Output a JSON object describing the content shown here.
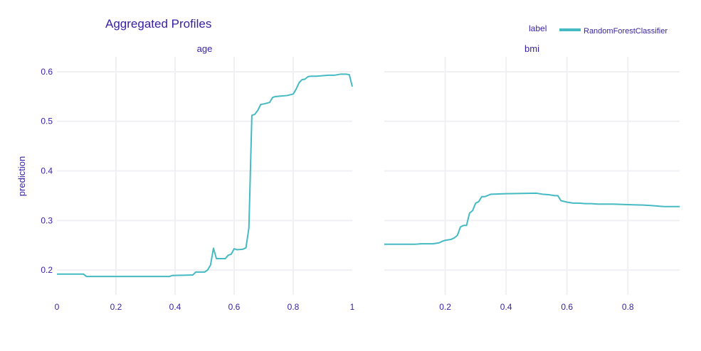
{
  "colors": {
    "text": "#371ea3",
    "line": "#46bac2",
    "grid": "#f0f0f4"
  },
  "title": "Aggregated Profiles",
  "legend": {
    "title": "label",
    "items": [
      "RandomForestClassifier"
    ]
  },
  "y_axis_label": "prediction",
  "chart_data": [
    {
      "type": "line",
      "title": "age",
      "xlabel": "",
      "ylabel": "prediction",
      "xlim": [
        0,
        1
      ],
      "ylim": [
        0.15,
        0.63
      ],
      "xticks": [
        0,
        0.2,
        0.4,
        0.6,
        0.8,
        1
      ],
      "xtick_labels": [
        "0",
        "0.2",
        "0.4",
        "0.6",
        "0.8",
        "1"
      ],
      "yticks": [
        0.2,
        0.3,
        0.4,
        0.5,
        0.6
      ],
      "ytick_labels": [
        "0.2",
        "0.3",
        "0.4",
        "0.5",
        "0.6"
      ],
      "grid": true,
      "series": [
        {
          "name": "RandomForestClassifier",
          "x": [
            0,
            0.09,
            0.1,
            0.2,
            0.3,
            0.38,
            0.39,
            0.45,
            0.46,
            0.47,
            0.49,
            0.5,
            0.51,
            0.52,
            0.53,
            0.54,
            0.57,
            0.58,
            0.59,
            0.6,
            0.61,
            0.63,
            0.64,
            0.65,
            0.66,
            0.67,
            0.68,
            0.69,
            0.7,
            0.72,
            0.73,
            0.74,
            0.76,
            0.78,
            0.8,
            0.81,
            0.82,
            0.83,
            0.84,
            0.85,
            0.86,
            0.88,
            0.9,
            0.92,
            0.94,
            0.96,
            0.98,
            0.99,
            1.0
          ],
          "y": [
            0.192,
            0.192,
            0.187,
            0.187,
            0.187,
            0.187,
            0.189,
            0.19,
            0.19,
            0.196,
            0.196,
            0.196,
            0.2,
            0.21,
            0.244,
            0.223,
            0.223,
            0.23,
            0.232,
            0.243,
            0.241,
            0.242,
            0.245,
            0.285,
            0.512,
            0.514,
            0.522,
            0.534,
            0.535,
            0.538,
            0.548,
            0.55,
            0.551,
            0.552,
            0.555,
            0.565,
            0.578,
            0.584,
            0.585,
            0.59,
            0.591,
            0.591,
            0.592,
            0.593,
            0.593,
            0.595,
            0.595,
            0.594,
            0.57
          ]
        }
      ]
    },
    {
      "type": "line",
      "title": "bmi",
      "xlabel": "",
      "ylabel": "",
      "xlim": [
        0.0,
        0.97
      ],
      "ylim": [
        0.15,
        0.63
      ],
      "xticks": [
        0.2,
        0.4,
        0.6,
        0.8
      ],
      "xtick_labels": [
        "0.2",
        "0.4",
        "0.6",
        "0.8"
      ],
      "grid": true,
      "series": [
        {
          "name": "RandomForestClassifier",
          "x": [
            0.0,
            0.1,
            0.12,
            0.16,
            0.18,
            0.19,
            0.2,
            0.22,
            0.23,
            0.24,
            0.25,
            0.26,
            0.27,
            0.28,
            0.29,
            0.3,
            0.31,
            0.32,
            0.33,
            0.35,
            0.4,
            0.5,
            0.52,
            0.54,
            0.56,
            0.57,
            0.58,
            0.6,
            0.62,
            0.64,
            0.66,
            0.68,
            0.7,
            0.75,
            0.8,
            0.85,
            0.88,
            0.9,
            0.92,
            0.97
          ],
          "y": [
            0.252,
            0.252,
            0.253,
            0.253,
            0.255,
            0.258,
            0.26,
            0.262,
            0.265,
            0.27,
            0.287,
            0.29,
            0.29,
            0.315,
            0.32,
            0.335,
            0.338,
            0.348,
            0.348,
            0.353,
            0.354,
            0.355,
            0.353,
            0.352,
            0.35,
            0.35,
            0.34,
            0.337,
            0.335,
            0.335,
            0.334,
            0.334,
            0.333,
            0.333,
            0.332,
            0.331,
            0.33,
            0.329,
            0.328,
            0.328
          ]
        }
      ]
    }
  ]
}
